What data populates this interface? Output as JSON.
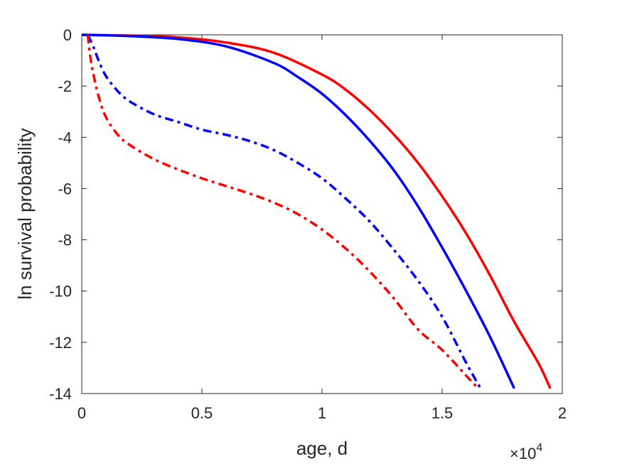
{
  "chart_data": {
    "type": "line",
    "title": "",
    "xlabel": "age, d",
    "ylabel": "ln survival probability",
    "x_multiplier": {
      "base": "×10",
      "exponent": "4"
    },
    "xlim": [
      0,
      20000
    ],
    "ylim": [
      -14,
      0
    ],
    "xticks": [
      0,
      5000,
      10000,
      15000,
      20000
    ],
    "xtick_labels": [
      "0",
      "0.5",
      "1",
      "1.5",
      "2"
    ],
    "yticks": [
      0,
      -2,
      -4,
      -6,
      -8,
      -10,
      -12,
      -14
    ],
    "ytick_labels": [
      "0",
      "-2",
      "-4",
      "-6",
      "-8",
      "-10",
      "-12",
      "-14"
    ],
    "grid": false,
    "legend": "none",
    "series": [
      {
        "color": "#ff0000",
        "style": "solid",
        "x": [
          0,
          2000,
          4000,
          6000,
          8000,
          10000,
          11000,
          12000,
          13000,
          14000,
          15000,
          16000,
          17000,
          18000,
          19000,
          19500
        ],
        "y": [
          0,
          -0.03,
          -0.1,
          -0.3,
          -0.7,
          -1.55,
          -2.15,
          -2.95,
          -3.9,
          -5.0,
          -6.3,
          -7.75,
          -9.4,
          -11.2,
          -12.8,
          -13.8
        ]
      },
      {
        "color": "#0000ff",
        "style": "solid",
        "x": [
          0,
          2000,
          4000,
          6000,
          8000,
          9000,
          10000,
          11000,
          12000,
          13000,
          14000,
          15000,
          16000,
          17000,
          18000
        ],
        "y": [
          0,
          -0.05,
          -0.16,
          -0.45,
          -1.1,
          -1.65,
          -2.3,
          -3.15,
          -4.15,
          -5.3,
          -6.7,
          -8.3,
          -10.0,
          -11.8,
          -13.8
        ]
      },
      {
        "color": "#0000ff",
        "style": "dashdot",
        "x": [
          250,
          500,
          700,
          1000,
          1500,
          2000,
          3000,
          4000,
          5000,
          6000,
          7000,
          8000,
          9000,
          10000,
          11000,
          12000,
          13000,
          14000,
          15000,
          16000,
          16600
        ],
        "y": [
          0,
          -0.5,
          -1.0,
          -1.6,
          -2.2,
          -2.6,
          -3.1,
          -3.4,
          -3.7,
          -3.9,
          -4.15,
          -4.5,
          -5.0,
          -5.6,
          -6.4,
          -7.3,
          -8.4,
          -9.6,
          -11.0,
          -12.8,
          -13.8
        ]
      },
      {
        "color": "#ff0000",
        "style": "dashdot",
        "x": [
          250,
          350,
          500,
          700,
          1000,
          1500,
          2000,
          3000,
          4000,
          5000,
          6000,
          7000,
          8000,
          9000,
          10000,
          11000,
          12000,
          13000,
          14000,
          15000,
          16000,
          16500
        ],
        "y": [
          0,
          -0.8,
          -1.6,
          -2.4,
          -3.2,
          -3.9,
          -4.3,
          -4.85,
          -5.25,
          -5.6,
          -5.9,
          -6.2,
          -6.55,
          -7.0,
          -7.6,
          -8.35,
          -9.25,
          -10.3,
          -11.5,
          -12.3,
          -13.3,
          -13.8
        ]
      }
    ]
  }
}
